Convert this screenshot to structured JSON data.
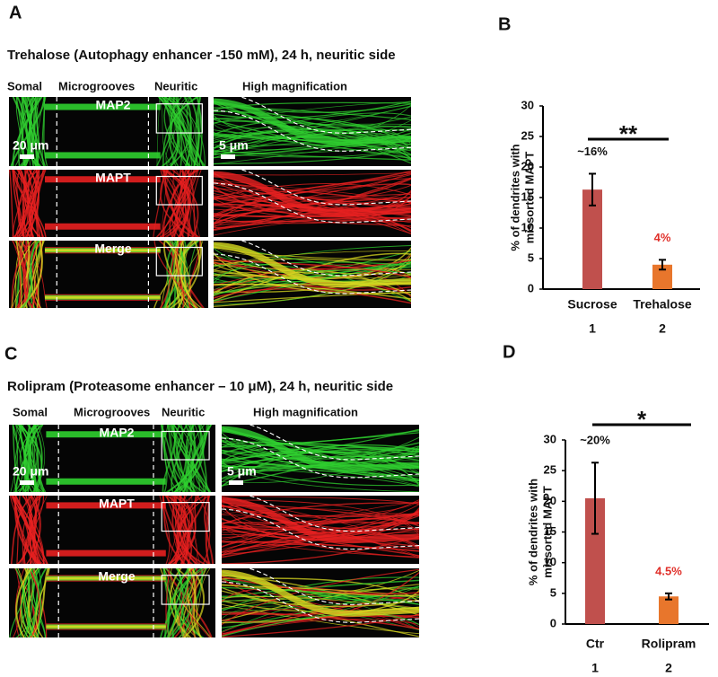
{
  "panels": [
    {
      "label": "A",
      "title": "Trehalose (Autophagy enhancer -150 mM), 24 h, neuritic side",
      "columns": [
        "Somal",
        "Microgrooves",
        "Neuritic",
        "High magnification"
      ],
      "rows": [
        "MAP2",
        "MAPT",
        "Merge"
      ],
      "scale_bars": [
        "20 μm",
        "5 μm"
      ]
    },
    {
      "label": "C",
      "title": "Rolipram (Proteasome enhancer – 10 μM), 24 h, neuritic side",
      "columns": [
        "Somal",
        "Microgrooves",
        "Neuritic",
        "High magnification"
      ],
      "rows": [
        "MAP2",
        "MAPT",
        "Merge"
      ],
      "scale_bars": [
        "20 μm",
        "5 μm"
      ]
    }
  ],
  "chart_data": [
    {
      "type": "bar",
      "panel": "B",
      "ylabel": [
        "% of dendrites with",
        "missorted MAPT"
      ],
      "categories": [
        "Sucrose",
        "Trehalose"
      ],
      "category_numbers": [
        "1",
        "2"
      ],
      "values": [
        16.3,
        4.0
      ],
      "errors": [
        2.6,
        0.8
      ],
      "value_labels": [
        "~16%",
        "4%"
      ],
      "colors": [
        "#c0504d",
        "#e8762c"
      ],
      "value_label_colors": [
        "#111111",
        "#e0302a"
      ],
      "significance": "**",
      "ylim": [
        0,
        30
      ],
      "yticks": [
        0,
        5,
        10,
        15,
        20,
        25,
        30
      ]
    },
    {
      "type": "bar",
      "panel": "D",
      "ylabel": [
        "% of dendrites with",
        "missorted MAPT"
      ],
      "categories": [
        "Ctr",
        "Rolipram"
      ],
      "category_numbers": [
        "1",
        "2"
      ],
      "values": [
        20.5,
        4.5
      ],
      "errors": [
        5.8,
        0.5
      ],
      "value_labels": [
        "~20%",
        "4.5%"
      ],
      "colors": [
        "#c0504d",
        "#e8762c"
      ],
      "value_label_colors": [
        "#111111",
        "#e0302a"
      ],
      "significance": "*",
      "ylim": [
        0,
        30
      ],
      "yticks": [
        0,
        5,
        10,
        15,
        20,
        25,
        30
      ]
    }
  ]
}
